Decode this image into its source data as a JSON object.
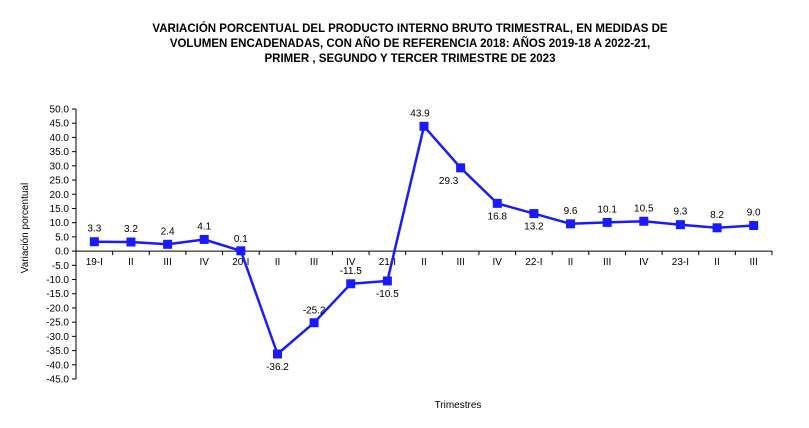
{
  "title_lines": [
    "VARIACIÓN PORCENTUAL DEL PRODUCTO INTERNO BRUTO TRIMESTRAL, EN MEDIDAS DE",
    "VOLUMEN ENCADENADAS, CON AÑO DE  REFERENCIA 2018: AÑOS 2019-18 A 2022-21,",
    "PRIMER , SEGUNDO Y TERCER TRIMESTRE DE 2023"
  ],
  "chart_data": {
    "type": "line",
    "title": "VARIACIÓN PORCENTUAL DEL PRODUCTO INTERNO BRUTO TRIMESTRAL, EN MEDIDAS DE VOLUMEN ENCADENADAS, CON AÑO DE  REFERENCIA 2018: AÑOS 2019-18 A 2022-21, PRIMER , SEGUNDO Y TERCER TRIMESTRE DE 2023",
    "xlabel": "Trimestres",
    "ylabel": "Variación porcentual",
    "categories": [
      "19-I",
      "II",
      "III",
      "IV",
      "20-I",
      "II",
      "III",
      "IV",
      "21-I",
      "II",
      "III",
      "IV",
      "22-I",
      "II",
      "III",
      "IV",
      "23-I",
      "II",
      "III"
    ],
    "values": [
      3.3,
      3.2,
      2.4,
      4.1,
      0.1,
      -36.2,
      -25.2,
      -11.5,
      -10.5,
      43.9,
      29.3,
      16.8,
      13.2,
      9.6,
      10.1,
      10.5,
      9.3,
      8.2,
      9.0
    ],
    "data_labels": [
      "3.3",
      "3.2",
      "2.4",
      "4.1",
      "0.1",
      "-36.2",
      "-25.2",
      "-11.5",
      "-10.5",
      "43.9",
      "29.3",
      "16.8",
      "13.2",
      "9.6",
      "10.1",
      "10.5",
      "9.3",
      "8.2",
      "9.0"
    ],
    "ylim": [
      -45,
      50
    ],
    "ytick_step": 5,
    "ytick_labels": [
      "50.0",
      "45.0",
      "40.0",
      "35.0",
      "30.0",
      "25.0",
      "20.0",
      "15.0",
      "10.0",
      "5.0",
      "0.0",
      "-5.0",
      "-10.0",
      "-15.0",
      "-20.0",
      "-25.0",
      "-30.0",
      "-35.0",
      "-40.0",
      "-45.0"
    ],
    "grid": false,
    "legend": "none",
    "line_color": "#1a1aff",
    "marker_color": "#1a1aff"
  }
}
